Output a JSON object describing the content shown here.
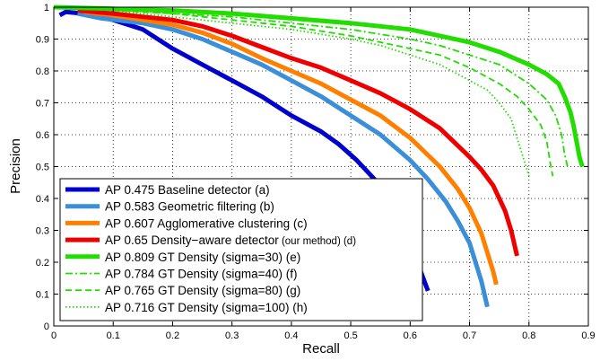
{
  "chart_data": {
    "type": "line",
    "title": "",
    "xlabel": "Recall",
    "ylabel": "Precision",
    "xlim": [
      0,
      0.9
    ],
    "ylim": [
      0,
      1
    ],
    "xticks": [
      "0",
      "0.1",
      "0.2",
      "0.3",
      "0.4",
      "0.5",
      "0.6",
      "0.7",
      "0.8",
      "0.9"
    ],
    "yticks": [
      "0",
      "0.1",
      "0.2",
      "0.3",
      "0.4",
      "0.5",
      "0.6",
      "0.7",
      "0.8",
      "0.9",
      "1"
    ],
    "grid": true,
    "legend_position": "bottom-left",
    "series": [
      {
        "legend_main": "AP 0.475 Baseline detector (a)",
        "legend_note": "",
        "color": "#0000cc",
        "style": "solid",
        "width": "thick",
        "x": [
          0.01,
          0.02,
          0.05,
          0.1,
          0.15,
          0.2,
          0.25,
          0.3,
          0.35,
          0.4,
          0.45,
          0.48,
          0.51,
          0.53,
          0.55,
          0.57,
          0.58,
          0.59,
          0.6,
          0.61,
          0.62,
          0.63
        ],
        "y": [
          0.975,
          0.985,
          0.98,
          0.96,
          0.93,
          0.87,
          0.82,
          0.77,
          0.72,
          0.66,
          0.61,
          0.57,
          0.52,
          0.48,
          0.44,
          0.39,
          0.35,
          0.31,
          0.26,
          0.21,
          0.16,
          0.11
        ]
      },
      {
        "legend_main": "AP 0.583 Geometric filtering (b)",
        "legend_note": "",
        "color": "#3a8fd8",
        "style": "solid",
        "width": "thick",
        "x": [
          0.04,
          0.08,
          0.15,
          0.2,
          0.25,
          0.3,
          0.35,
          0.4,
          0.45,
          0.5,
          0.55,
          0.6,
          0.63,
          0.66,
          0.68,
          0.7,
          0.71,
          0.72,
          0.725,
          0.73
        ],
        "y": [
          0.98,
          0.965,
          0.95,
          0.93,
          0.9,
          0.86,
          0.82,
          0.77,
          0.72,
          0.66,
          0.6,
          0.52,
          0.46,
          0.39,
          0.33,
          0.26,
          0.2,
          0.14,
          0.1,
          0.06
        ]
      },
      {
        "legend_main": "AP 0.607 Agglomerative clustering (c)",
        "legend_note": "",
        "color": "#ff8000",
        "style": "solid",
        "width": "thick",
        "x": [
          0.05,
          0.1,
          0.15,
          0.2,
          0.25,
          0.3,
          0.35,
          0.4,
          0.45,
          0.5,
          0.55,
          0.6,
          0.65,
          0.68,
          0.7,
          0.72,
          0.73,
          0.74,
          0.745
        ],
        "y": [
          0.985,
          0.975,
          0.96,
          0.945,
          0.92,
          0.885,
          0.84,
          0.8,
          0.76,
          0.71,
          0.66,
          0.59,
          0.5,
          0.43,
          0.37,
          0.29,
          0.23,
          0.17,
          0.13
        ]
      },
      {
        "legend_main": "AP 0.65 Density−aware detector",
        "legend_note": "(our method) (d)",
        "color": "#ee0000",
        "style": "solid",
        "width": "thick",
        "x": [
          0.04,
          0.1,
          0.15,
          0.2,
          0.25,
          0.3,
          0.35,
          0.4,
          0.45,
          0.5,
          0.55,
          0.6,
          0.65,
          0.7,
          0.72,
          0.74,
          0.75,
          0.76,
          0.77,
          0.775,
          0.78
        ],
        "y": [
          0.99,
          0.98,
          0.97,
          0.96,
          0.94,
          0.91,
          0.875,
          0.84,
          0.81,
          0.77,
          0.73,
          0.68,
          0.62,
          0.53,
          0.49,
          0.44,
          0.4,
          0.36,
          0.3,
          0.26,
          0.22
        ]
      },
      {
        "legend_main": "AP 0.809 GT Density (sigma=30) (e)",
        "legend_note": "",
        "color": "#22dd00",
        "style": "solid",
        "width": "thick",
        "x": [
          0.0,
          0.1,
          0.2,
          0.3,
          0.4,
          0.5,
          0.55,
          0.6,
          0.65,
          0.7,
          0.75,
          0.8,
          0.83,
          0.85,
          0.86,
          0.87,
          0.875,
          0.88,
          0.885,
          0.89
        ],
        "y": [
          1.0,
          0.995,
          0.99,
          0.98,
          0.965,
          0.95,
          0.94,
          0.93,
          0.91,
          0.89,
          0.86,
          0.82,
          0.79,
          0.76,
          0.72,
          0.67,
          0.63,
          0.58,
          0.53,
          0.5
        ]
      },
      {
        "legend_main": "AP 0.784 GT Density (sigma=40) (f)",
        "legend_note": "",
        "color": "#22dd00",
        "style": "dashdot",
        "width": "thin",
        "x": [
          0.0,
          0.1,
          0.2,
          0.3,
          0.4,
          0.5,
          0.6,
          0.65,
          0.7,
          0.75,
          0.8,
          0.83,
          0.845,
          0.855,
          0.86,
          0.865
        ],
        "y": [
          1.0,
          0.995,
          0.98,
          0.97,
          0.95,
          0.93,
          0.9,
          0.88,
          0.85,
          0.82,
          0.76,
          0.71,
          0.66,
          0.6,
          0.54,
          0.5
        ]
      },
      {
        "legend_main": "AP 0.765 GT Density (sigma=80) (g)",
        "legend_note": "",
        "color": "#22dd00",
        "style": "dashed",
        "width": "thin",
        "x": [
          0.0,
          0.1,
          0.2,
          0.3,
          0.4,
          0.5,
          0.6,
          0.65,
          0.7,
          0.75,
          0.78,
          0.8,
          0.82,
          0.83,
          0.835,
          0.84
        ],
        "y": [
          1.0,
          0.99,
          0.98,
          0.96,
          0.94,
          0.91,
          0.87,
          0.85,
          0.81,
          0.76,
          0.72,
          0.68,
          0.63,
          0.58,
          0.52,
          0.47
        ]
      },
      {
        "legend_main": "AP 0.716 GT Density (sigma=100) (h)",
        "legend_note": "",
        "color": "#22dd00",
        "style": "dotted",
        "width": "thin",
        "x": [
          0.0,
          0.1,
          0.2,
          0.3,
          0.4,
          0.5,
          0.55,
          0.6,
          0.65,
          0.7,
          0.73,
          0.75,
          0.77,
          0.78,
          0.79,
          0.8
        ],
        "y": [
          1.0,
          0.99,
          0.97,
          0.95,
          0.93,
          0.9,
          0.88,
          0.85,
          0.82,
          0.77,
          0.74,
          0.7,
          0.65,
          0.59,
          0.53,
          0.47
        ]
      }
    ]
  }
}
